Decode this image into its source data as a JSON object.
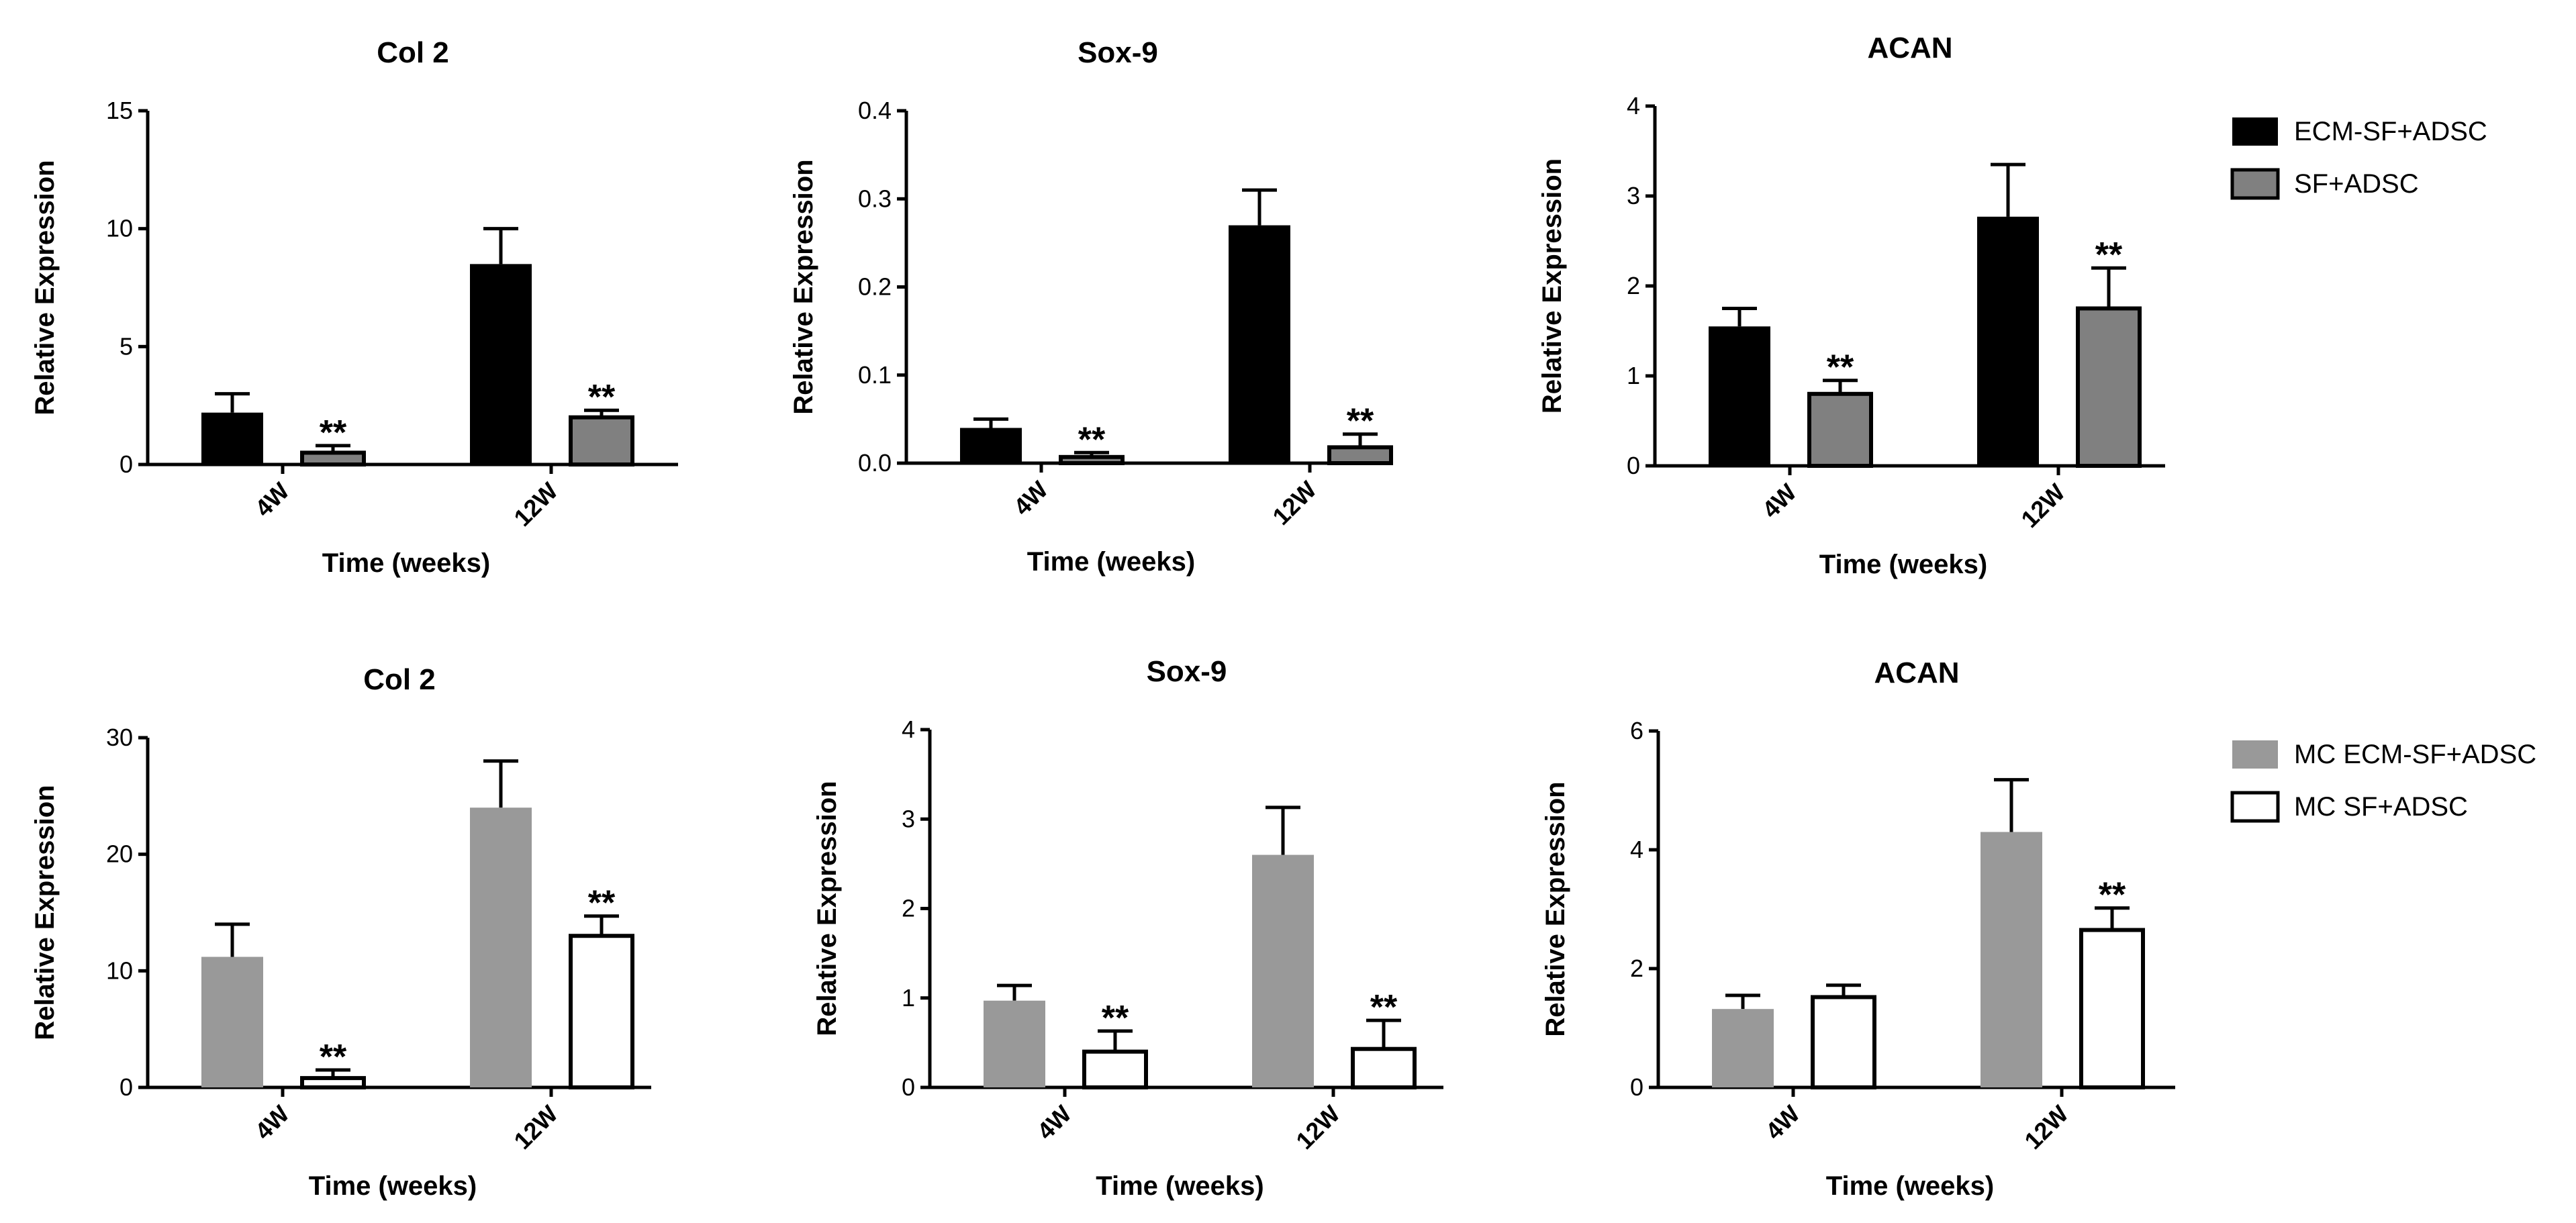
{
  "chart_data": [
    {
      "type": "bar",
      "row": "top",
      "title": "Col 2",
      "xlabel": "Time (weeks)",
      "ylabel": "Relative Expression",
      "categories": [
        "4W",
        "12W"
      ],
      "ylim": [
        0,
        15
      ],
      "yticks": [
        "0",
        "5",
        "10",
        "15"
      ],
      "series": [
        {
          "name": "ECM-SF+ADSC",
          "values": [
            2.2,
            8.5
          ],
          "errors": [
            0.8,
            1.5
          ],
          "color": "#000000"
        },
        {
          "name": "SF+ADSC",
          "values": [
            0.5,
            2.0
          ],
          "errors": [
            0.3,
            0.3
          ],
          "color": "#808080"
        }
      ],
      "significance": [
        "**",
        "**"
      ]
    },
    {
      "type": "bar",
      "row": "top",
      "title": "Sox-9",
      "xlabel": "Time (weeks)",
      "ylabel": "Relative Expression",
      "categories": [
        "4W",
        "12W"
      ],
      "ylim": [
        0,
        0.4
      ],
      "yticks": [
        "0.0",
        "0.1",
        "0.2",
        "0.3",
        "0.4"
      ],
      "series": [
        {
          "name": "ECM-SF+ADSC",
          "values": [
            0.04,
            0.27
          ],
          "errors": [
            0.01,
            0.04
          ],
          "color": "#000000"
        },
        {
          "name": "SF+ADSC",
          "values": [
            0.007,
            0.018
          ],
          "errors": [
            0.005,
            0.015
          ],
          "color": "#808080"
        }
      ],
      "significance": [
        "**",
        "**"
      ]
    },
    {
      "type": "bar",
      "row": "top",
      "title": "ACAN",
      "xlabel": "Time (weeks)",
      "ylabel": "Relative Expression",
      "categories": [
        "4W",
        "12W"
      ],
      "ylim": [
        0,
        4
      ],
      "yticks": [
        "0",
        "1",
        "2",
        "3",
        "4"
      ],
      "series": [
        {
          "name": "ECM-SF+ADSC",
          "values": [
            1.55,
            2.77
          ],
          "errors": [
            0.2,
            0.58
          ],
          "color": "#000000"
        },
        {
          "name": "SF+ADSC",
          "values": [
            0.8,
            1.75
          ],
          "errors": [
            0.15,
            0.45
          ],
          "color": "#808080"
        }
      ],
      "significance": [
        "**",
        "**"
      ]
    },
    {
      "type": "bar",
      "row": "bottom",
      "title": "Col 2",
      "xlabel": "Time (weeks)",
      "ylabel": "Relative Expression",
      "categories": [
        "4W",
        "12W"
      ],
      "ylim": [
        0,
        30
      ],
      "yticks": [
        "0",
        "10",
        "20",
        "30"
      ],
      "series": [
        {
          "name": "MC ECM-SF+ADSC",
          "values": [
            11.2,
            24.0
          ],
          "errors": [
            2.8,
            4.0
          ],
          "color": "#999999"
        },
        {
          "name": "MC SF+ADSC",
          "values": [
            0.8,
            13.0
          ],
          "errors": [
            0.7,
            1.7
          ],
          "color": "#ffffff"
        }
      ],
      "significance": [
        "**",
        "**"
      ]
    },
    {
      "type": "bar",
      "row": "bottom",
      "title": "Sox-9",
      "xlabel": "Time (weeks)",
      "ylabel": "Relative Expression",
      "categories": [
        "4W",
        "12W"
      ],
      "ylim": [
        0,
        4
      ],
      "yticks": [
        "0",
        "1",
        "2",
        "3",
        "4"
      ],
      "series": [
        {
          "name": "MC ECM-SF+ADSC",
          "values": [
            0.97,
            2.6
          ],
          "errors": [
            0.17,
            0.53
          ],
          "color": "#999999"
        },
        {
          "name": "MC SF+ADSC",
          "values": [
            0.4,
            0.43
          ],
          "errors": [
            0.23,
            0.32
          ],
          "color": "#ffffff"
        }
      ],
      "significance": [
        "**",
        "**"
      ]
    },
    {
      "type": "bar",
      "row": "bottom",
      "title": "ACAN",
      "xlabel": "Time (weeks)",
      "ylabel": "Relative Expression",
      "categories": [
        "4W",
        "12W"
      ],
      "ylim": [
        0,
        6
      ],
      "yticks": [
        "0",
        "2",
        "4",
        "6"
      ],
      "series": [
        {
          "name": "MC ECM-SF+ADSC",
          "values": [
            1.32,
            4.3
          ],
          "errors": [
            0.23,
            0.88
          ],
          "color": "#999999"
        },
        {
          "name": "MC SF+ADSC",
          "values": [
            1.52,
            2.65
          ],
          "errors": [
            0.2,
            0.37
          ],
          "color": "#ffffff"
        }
      ],
      "significance": [
        "",
        "**"
      ]
    }
  ],
  "legends": [
    {
      "row": "top",
      "items": [
        {
          "label": "ECM-SF+ADSC",
          "color": "#000000"
        },
        {
          "label": "SF+ADSC",
          "color": "#808080"
        }
      ]
    },
    {
      "row": "bottom",
      "items": [
        {
          "label": "MC ECM-SF+ADSC",
          "color": "#999999"
        },
        {
          "label": "MC SF+ADSC",
          "color": "#ffffff"
        }
      ]
    }
  ]
}
